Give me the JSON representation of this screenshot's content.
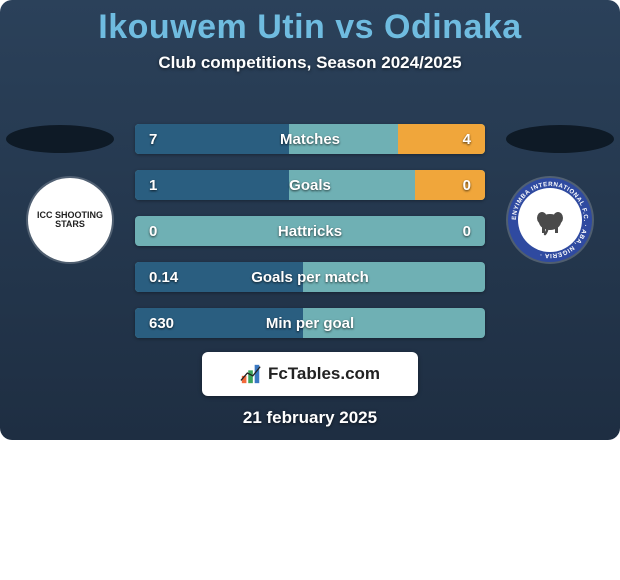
{
  "colors": {
    "bg_top": "#2b415a",
    "bg_bottom": "#1e2e42",
    "title": "#6fbce0",
    "text_light": "#ffffff",
    "row_base": "#6fb0b4",
    "row_left_fill": "#2a5e80",
    "row_right_fill": "#f0a63b",
    "ellipse": "#0e1a26",
    "badge_bg": "#ffffff",
    "badge_text": "#222222",
    "team_left_bg": "#ffffff",
    "team_left_text": "#222222",
    "team_right_bg": "#2f4aa0",
    "team_right_inner": "#ffffff",
    "team_right_ring_text": "#ffffff",
    "icon_bars": [
      "#f26a3b",
      "#3aa35a",
      "#3a78c2"
    ]
  },
  "title": "Ikouwem Utin vs Odinaka",
  "subtitle": "Club competitions, Season 2024/2025",
  "team_left_label": "ICC SHOOTING STARS",
  "team_right_ring": "ENYIMBA INTERNATIONAL F.C. · ABA, NIGERIA ·",
  "rows": [
    {
      "label": "Matches",
      "left": "7",
      "right": "4",
      "left_pct": 44,
      "right_pct": 25
    },
    {
      "label": "Goals",
      "left": "1",
      "right": "0",
      "left_pct": 44,
      "right_pct": 20
    },
    {
      "label": "Hattricks",
      "left": "0",
      "right": "0",
      "left_pct": 0,
      "right_pct": 0
    },
    {
      "label": "Goals per match",
      "left": "0.14",
      "right": "",
      "left_pct": 48,
      "right_pct": 0
    },
    {
      "label": "Min per goal",
      "left": "630",
      "right": "",
      "left_pct": 48,
      "right_pct": 0
    }
  ],
  "footer_brand": "FcTables.com",
  "date": "21 february 2025"
}
